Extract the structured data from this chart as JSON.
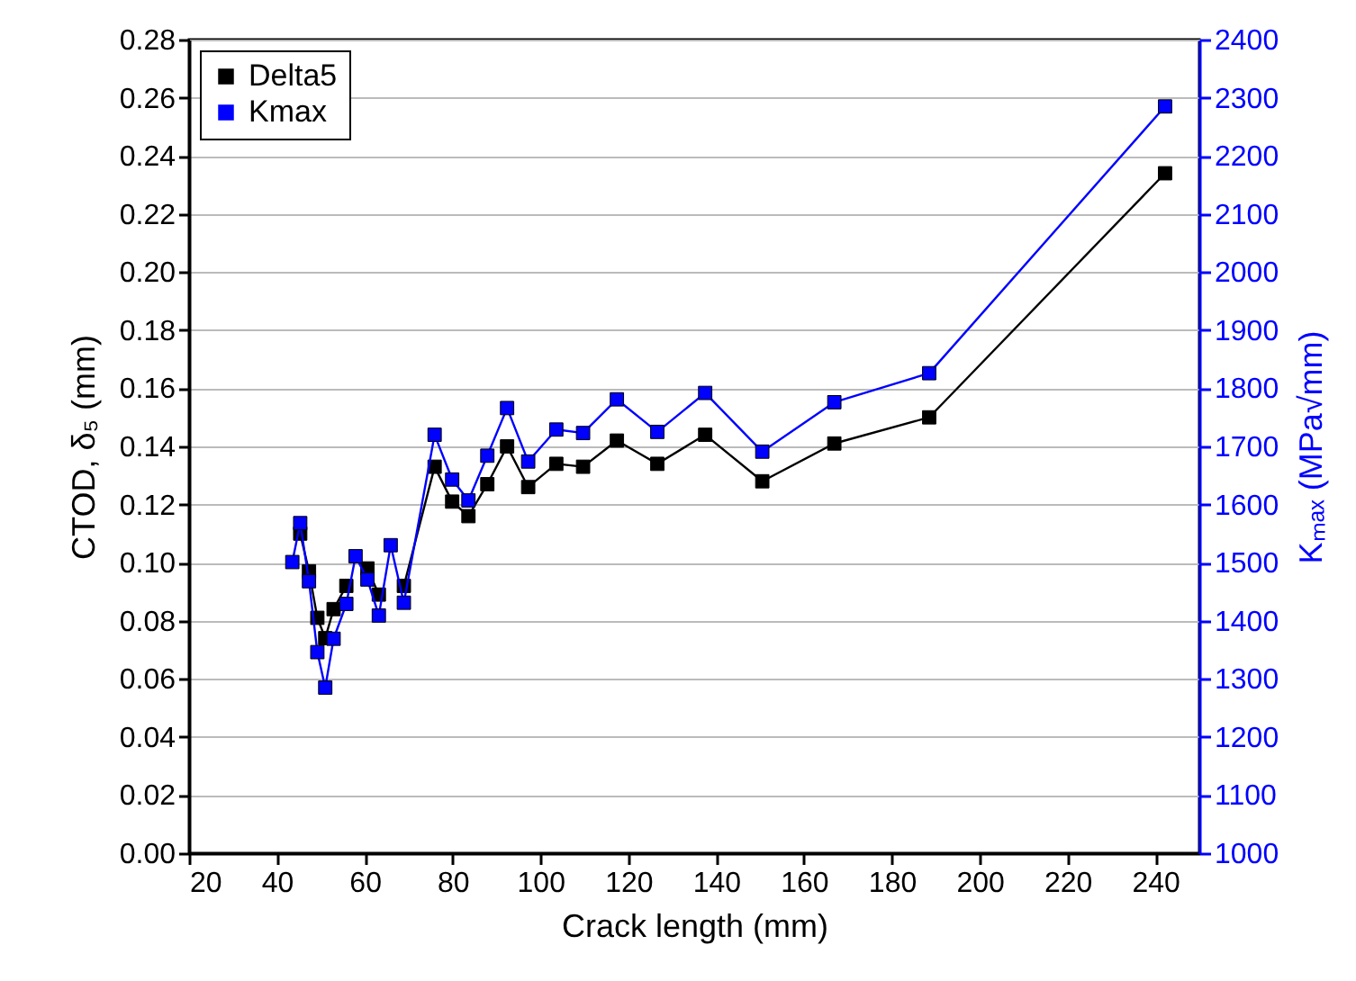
{
  "chart_data": {
    "type": "line",
    "xlabel": "Crack length (mm)",
    "ylabel": "CTOD, δ₅ (mm)",
    "y2label": "Kₘₐₓ (MPa√mm)",
    "xlim": [
      20,
      250
    ],
    "xticks": [
      20,
      40,
      60,
      80,
      100,
      120,
      140,
      160,
      180,
      200,
      220,
      240
    ],
    "ylim": [
      0,
      0.28
    ],
    "yticks": [
      {
        "value": 0,
        "label": "0.00"
      },
      {
        "value": 0.02,
        "label": "0.02"
      },
      {
        "value": 0.04,
        "label": "0.04"
      },
      {
        "value": 0.06,
        "label": "0.06"
      },
      {
        "value": 0.08,
        "label": "0.08"
      },
      {
        "value": 0.1,
        "label": "0.10"
      },
      {
        "value": 0.12,
        "label": "0.12"
      },
      {
        "value": 0.14,
        "label": "0.14"
      },
      {
        "value": 0.16,
        "label": "0.16"
      },
      {
        "value": 0.18,
        "label": "0.18"
      },
      {
        "value": 0.2,
        "label": "0.20"
      },
      {
        "value": 0.22,
        "label": "0.22"
      },
      {
        "value": 0.24,
        "label": "0.24"
      },
      {
        "value": 0.26,
        "label": "0.26"
      },
      {
        "value": 0.28,
        "label": "0.28"
      }
    ],
    "y2lim": [
      1000,
      2400
    ],
    "y2ticks": [
      1000,
      1100,
      1200,
      1300,
      1400,
      1500,
      1600,
      1700,
      1800,
      1900,
      2000,
      2100,
      2200,
      2300,
      2400
    ],
    "x": [
      43.5,
      45.3,
      47.3,
      49.2,
      51.0,
      52.9,
      55.8,
      57.9,
      60.6,
      63.2,
      65.9,
      68.9,
      75.9,
      79.9,
      83.6,
      87.9,
      92.4,
      97.2,
      103.6,
      109.7,
      117.4,
      126.6,
      137.5,
      150.5,
      166.9,
      188.5,
      242.2
    ],
    "series": [
      {
        "name": "Delta5",
        "color": "#000000",
        "values": [
          null,
          0.11,
          0.097,
          0.081,
          0.074,
          0.084,
          0.092,
          null,
          0.098,
          0.089,
          null,
          0.092,
          0.133,
          0.121,
          0.116,
          0.127,
          0.14,
          0.126,
          0.134,
          0.133,
          0.142,
          0.134,
          0.144,
          0.128,
          0.141,
          0.15,
          0.234
        ]
      },
      {
        "name": "Kmax",
        "color": "#0000ff",
        "axis": "y2",
        "values": [
          1501,
          1568,
          1468,
          1346,
          1285,
          1369,
          1429,
          1511,
          1471,
          1409,
          1530,
          1431,
          1720,
          1643,
          1607,
          1684,
          1766,
          1674,
          1729,
          1723,
          1781,
          1725,
          1792,
          1691,
          1776,
          1826,
          2285
        ]
      }
    ],
    "grid": "y",
    "legend": "top left",
    "marker": "square",
    "line_style": "solid"
  }
}
